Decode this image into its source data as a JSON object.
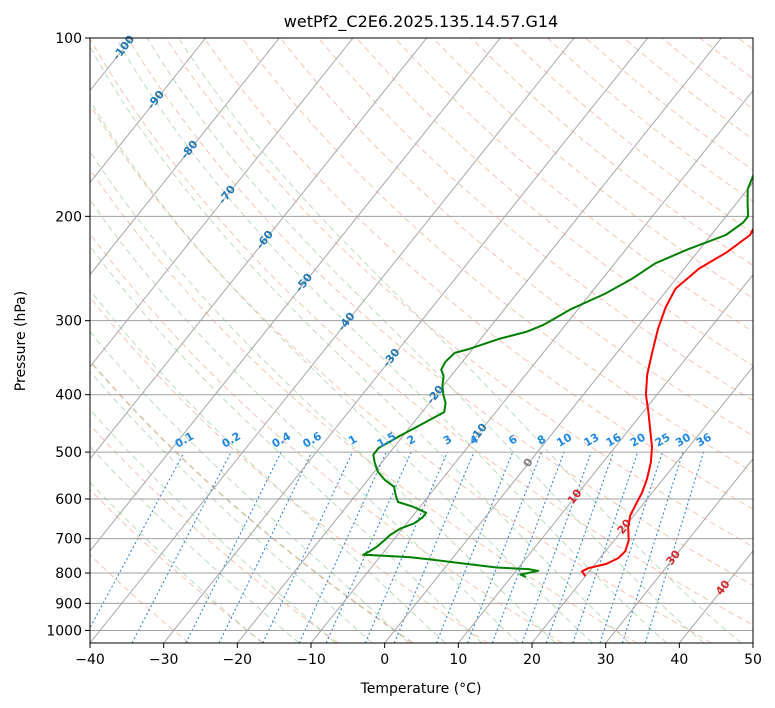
{
  "chart_data": {
    "type": "line",
    "title": "wetPf2_C2E6.2025.135.14.57.G14",
    "xlabel": "Temperature (°C)",
    "ylabel": "Pressure (hPa)",
    "xlim": [
      -40,
      50
    ],
    "ylim": [
      1050,
      100
    ],
    "y_scale": "log",
    "grid": true,
    "x_ticks": [
      "−40",
      "−30",
      "−20",
      "−10",
      "0",
      "10",
      "20",
      "30",
      "40",
      "50"
    ],
    "y_ticks": [
      "100",
      "200",
      "300",
      "400",
      "500",
      "600",
      "700",
      "800",
      "900",
      "1000"
    ],
    "skew_reference_lines": "solid gray isotherms, dashed red-orange dry adiabats, dashed green moist adiabats, dotted blue mixing-ratio lines",
    "series": [
      {
        "color": "#ff0000",
        "role": "temperature",
        "points": [
          [
            20,
            810
          ],
          [
            19,
            795
          ],
          [
            19.5,
            785
          ],
          [
            21.5,
            772
          ],
          [
            22.5,
            755
          ],
          [
            22.7,
            735
          ],
          [
            22,
            705
          ],
          [
            20.5,
            670
          ],
          [
            19.5,
            640
          ],
          [
            19,
            610
          ],
          [
            18.6,
            585
          ],
          [
            17.8,
            555
          ],
          [
            16.5,
            520
          ],
          [
            15,
            490
          ],
          [
            13,
            460
          ],
          [
            10.5,
            425
          ],
          [
            8.5,
            400
          ],
          [
            6.5,
            370
          ],
          [
            4.8,
            340
          ],
          [
            3,
            310
          ],
          [
            1.7,
            285
          ],
          [
            1,
            265
          ],
          [
            2,
            245
          ],
          [
            4,
            230
          ],
          [
            5.3,
            215
          ],
          [
            4.6,
            200
          ],
          [
            3.5,
            185
          ],
          [
            1.5,
            165
          ],
          [
            -0.3,
            150
          ],
          [
            -1.5,
            135
          ],
          [
            -2,
            125
          ],
          [
            -1.5,
            117
          ],
          [
            2,
            110
          ],
          [
            5.5,
            105
          ],
          [
            8.5,
            100
          ]
        ]
      },
      {
        "color": "#008000",
        "role": "dewpoint",
        "points": [
          [
            12,
            812
          ],
          [
            11,
            805
          ],
          [
            13,
            793
          ],
          [
            11.5,
            788
          ],
          [
            7,
            783
          ],
          [
            2.5,
            772
          ],
          [
            -2.5,
            760
          ],
          [
            -6,
            752
          ],
          [
            -12.5,
            745
          ],
          [
            -12,
            735
          ],
          [
            -11.5,
            722
          ],
          [
            -11.2,
            705
          ],
          [
            -11,
            690
          ],
          [
            -10.3,
            673
          ],
          [
            -9,
            660
          ],
          [
            -8.5,
            645
          ],
          [
            -8.5,
            640
          ],
          [
            -8.5,
            633
          ],
          [
            -11,
            618
          ],
          [
            -13.5,
            607
          ],
          [
            -14.5,
            592
          ],
          [
            -15.7,
            572
          ],
          [
            -17.7,
            557
          ],
          [
            -19.5,
            540
          ],
          [
            -21,
            520
          ],
          [
            -22,
            505
          ],
          [
            -22,
            492
          ],
          [
            -21.3,
            482
          ],
          [
            -20.5,
            470
          ],
          [
            -19,
            452
          ],
          [
            -17,
            428
          ],
          [
            -17.8,
            413
          ],
          [
            -19,
            400
          ],
          [
            -20.2,
            385
          ],
          [
            -21,
            372
          ],
          [
            -22,
            363
          ],
          [
            -22.3,
            352
          ],
          [
            -22,
            340
          ],
          [
            -20.5,
            335
          ],
          [
            -17.5,
            322
          ],
          [
            -14.5,
            313
          ],
          [
            -13,
            305
          ],
          [
            -12,
            296
          ],
          [
            -11,
            287
          ],
          [
            -8,
            270
          ],
          [
            -6,
            255
          ],
          [
            -4.5,
            240
          ],
          [
            -1.5,
            227
          ],
          [
            2,
            215
          ],
          [
            3,
            205
          ],
          [
            3,
            200
          ],
          [
            1.5,
            190
          ],
          [
            0,
            180
          ],
          [
            -1.2,
            165
          ],
          [
            -2.2,
            150
          ],
          [
            -3,
            136
          ],
          [
            -3,
            129
          ],
          [
            -1.5,
            122
          ],
          [
            0.5,
            117
          ],
          [
            1.5,
            112
          ],
          [
            0.8,
            108
          ],
          [
            0.5,
            103
          ],
          [
            0.5,
            100
          ]
        ]
      }
    ],
    "isotherm_labels": [
      "-100",
      "-90",
      "-80",
      "-70",
      "-60",
      "-50",
      "-40",
      "-30",
      "-20",
      "-10",
      "0",
      "10",
      "20",
      "30",
      "40"
    ],
    "mixing_ratio_labels": [
      "0.1",
      "0.2",
      "0.4",
      "0.6",
      "1",
      "1.5",
      "2",
      "3",
      "4",
      "6",
      "8",
      "10",
      "13",
      "16",
      "20",
      "25",
      "30",
      "36"
    ]
  }
}
